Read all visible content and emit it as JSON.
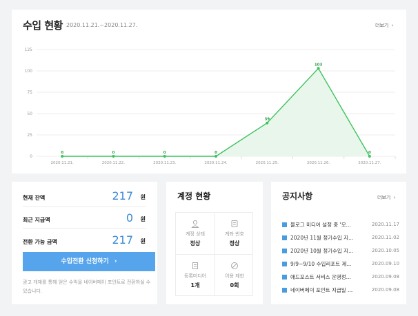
{
  "revenue": {
    "title": "수입 현황",
    "date_range": "2020.11.21.~2020.11.27.",
    "more_label": "더보기"
  },
  "chart_data": {
    "type": "area",
    "x": [
      "2020.11.21.",
      "2020.11.22.",
      "2020.11.23.",
      "2020.11.24.",
      "2020.11.25.",
      "2020.11.26.",
      "2020.11.27."
    ],
    "values": [
      0,
      0,
      0,
      0,
      39,
      103,
      0
    ],
    "data_labels": [
      "0",
      "0",
      "0",
      "0",
      "39",
      "103",
      "0"
    ],
    "yticks": [
      0,
      25,
      50,
      75,
      100,
      125
    ],
    "ylim": [
      0,
      125
    ],
    "grid": true,
    "line_color": "#3cc35c",
    "fill_color": "#e9f6ec",
    "title": "",
    "xlabel": "",
    "ylabel": ""
  },
  "balance": {
    "rows": [
      {
        "label": "현재 잔액",
        "value": "217",
        "unit": "원"
      },
      {
        "label": "최근 지급액",
        "value": "0",
        "unit": "원"
      },
      {
        "label": "전환 가능 금액",
        "value": "217",
        "unit": "원"
      }
    ],
    "button_label": "수입전환 신청하기",
    "note": "광고 게재를 통해 얻은 수익을 네이버페이 포인트로 전환하실 수 있습니다."
  },
  "account": {
    "title": "계정 현황",
    "cells": [
      {
        "icon": "person-icon",
        "label": "계정 상태",
        "value": "정상"
      },
      {
        "icon": "card-icon",
        "label": "계좌 번호",
        "value": "정상"
      },
      {
        "icon": "document-icon",
        "label": "등록미디어",
        "value": "1개"
      },
      {
        "icon": "restricted-icon",
        "label": "이용 제한",
        "value": "0회"
      }
    ]
  },
  "notices": {
    "title": "공지사항",
    "more_label": "더보기",
    "items": [
      {
        "title": "블로그 미디어 설정 중 '모...",
        "date": "2020.11.17"
      },
      {
        "title": "2020년 11월 정기수입 지...",
        "date": "2020.11.02"
      },
      {
        "title": "2020년 10월 정기수입 지...",
        "date": "2020.10.05"
      },
      {
        "title": "9/9~9/10 수입리포트 제...",
        "date": "2020.09.10"
      },
      {
        "title": "애드포스트 서비스 운영정...",
        "date": "2020.09.08"
      },
      {
        "title": "네이버페이 포인트 지급일 ...",
        "date": "2020.09.08"
      }
    ]
  },
  "colors": {
    "accent": "#3a8ad6",
    "button": "#55a4ec",
    "chart_line": "#3cc35c"
  }
}
